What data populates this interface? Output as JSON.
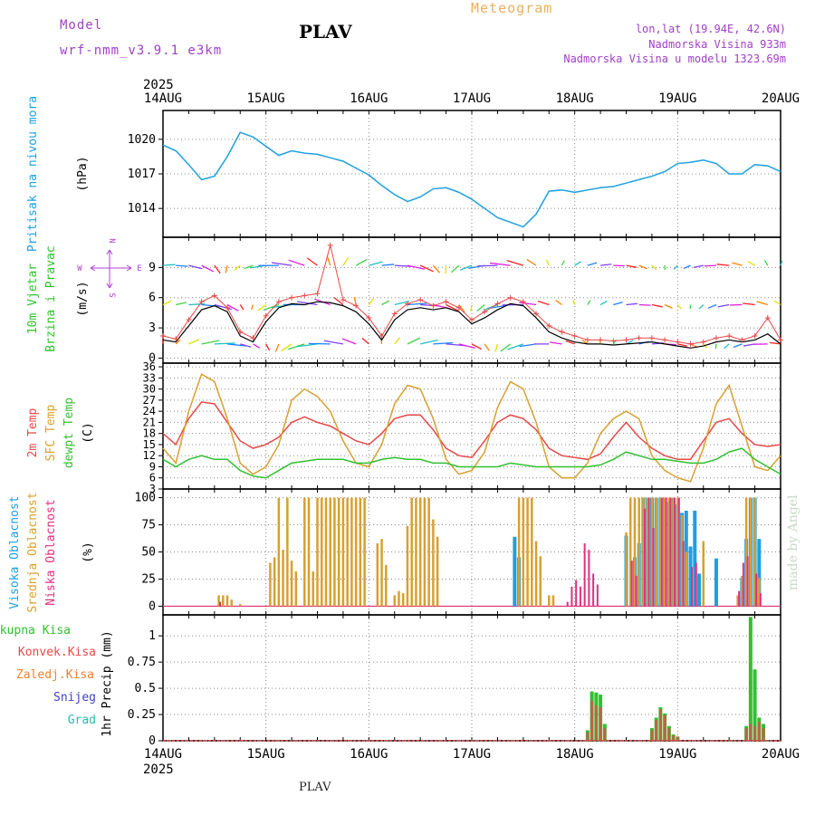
{
  "header": {
    "model_label": "Model",
    "model_version": "wrf-nmm_v3.9.1 e3km",
    "station": "PLAV",
    "title": "Meteogram",
    "lonlat": "lon,lat (19.94E, 42.6N)",
    "altitude": "Nadmorska Visina 933m",
    "model_altitude": "Nadmorska Visina u modelu 1323.69m"
  },
  "footer": {
    "station": "PLAV",
    "credit": "made by Angel"
  },
  "colors": {
    "pressure": "#1ea0e0",
    "temp2m": "#e84848",
    "sfc_temp": "#d8a030",
    "dewpt": "#30c030",
    "wind_label": "#30c030",
    "cloud_high": "#1ea0e0",
    "cloud_mid": "#d8a030",
    "cloud_low": "#e03080",
    "precip_total": "#30c030",
    "precip_conv": "#e84848",
    "precip_frz": "#f08030",
    "precip_snow": "#4040d0",
    "precip_hail": "#20c0b0",
    "wind_speed_line": "#000000",
    "wind_marker": "#e84848"
  },
  "time_axis": {
    "year": "2025",
    "ticks": [
      "14AUG",
      "15AUG",
      "16AUG",
      "17AUG",
      "18AUG",
      "19AUG",
      "20AUG"
    ]
  },
  "compass": {
    "n": "N",
    "s": "S",
    "e": "E",
    "w": "W"
  },
  "chart_data": [
    {
      "id": "pressure",
      "type": "line",
      "ylabel_lines": [
        "Pritisak na nivou mora",
        "(hPa)"
      ],
      "yticks": [
        1014,
        1017,
        1020
      ],
      "ylim": [
        1011.5,
        1022.5
      ],
      "x_hours": [
        0,
        3,
        6,
        9,
        12,
        15,
        18,
        21,
        24,
        27,
        30,
        33,
        36,
        39,
        42,
        45,
        48,
        51,
        54,
        57,
        60,
        63,
        66,
        69,
        72,
        75,
        78,
        81,
        84,
        87,
        90,
        93,
        96,
        99,
        102,
        105,
        108,
        111,
        114,
        117,
        120,
        123,
        126,
        129,
        132,
        135,
        138,
        141,
        144
      ],
      "series": [
        {
          "name": "MSLP",
          "values": [
            1019.5,
            1019.0,
            1017.8,
            1016.5,
            1016.8,
            1018.5,
            1020.6,
            1020.2,
            1019.4,
            1018.6,
            1019.0,
            1018.8,
            1018.7,
            1018.4,
            1018.1,
            1017.5,
            1016.9,
            1016.0,
            1015.2,
            1014.6,
            1015.0,
            1015.7,
            1015.8,
            1015.4,
            1014.8,
            1014.0,
            1013.2,
            1012.8,
            1012.4,
            1013.5,
            1015.5,
            1015.6,
            1015.4,
            1015.6,
            1015.8,
            1015.9,
            1016.2,
            1016.5,
            1016.8,
            1017.2,
            1017.9,
            1018.0,
            1018.2,
            1017.9,
            1017.0,
            1017.0,
            1017.8,
            1017.7,
            1017.2
          ]
        }
      ]
    },
    {
      "id": "wind",
      "type": "line",
      "ylabel_lines": [
        "10m Vjetar",
        "Brzina i Pravac",
        "(m/s)"
      ],
      "yticks": [
        0,
        3,
        6,
        9
      ],
      "ylim": [
        -0.5,
        12
      ],
      "x_hours": [
        0,
        3,
        6,
        9,
        12,
        15,
        18,
        21,
        24,
        27,
        30,
        33,
        36,
        39,
        42,
        45,
        48,
        51,
        54,
        57,
        60,
        63,
        66,
        69,
        72,
        75,
        78,
        81,
        84,
        87,
        90,
        93,
        96,
        99,
        102,
        105,
        108,
        111,
        114,
        117,
        120,
        123,
        126,
        129,
        132,
        135,
        138,
        141,
        144
      ],
      "series": [
        {
          "name": "speed",
          "values": [
            1.8,
            1.6,
            3.2,
            4.8,
            5.2,
            4.6,
            2.2,
            1.6,
            3.6,
            5.0,
            5.4,
            5.3,
            5.6,
            5.5,
            5.2,
            4.6,
            3.4,
            1.8,
            3.8,
            4.8,
            5.0,
            4.8,
            5.0,
            4.6,
            3.4,
            4.0,
            4.8,
            5.4,
            5.2,
            4.0,
            2.6,
            2.0,
            1.6,
            1.4,
            1.4,
            1.3,
            1.4,
            1.5,
            1.6,
            1.4,
            1.2,
            1.0,
            1.2,
            1.6,
            1.8,
            1.6,
            1.8,
            2.4,
            1.4
          ]
        },
        {
          "name": "speed_max",
          "values": [
            2.2,
            1.9,
            3.8,
            5.6,
            6.2,
            5.0,
            2.6,
            2.0,
            4.2,
            5.6,
            6.0,
            6.2,
            6.4,
            11.2,
            5.8,
            5.2,
            4.0,
            2.2,
            4.4,
            5.4,
            5.8,
            5.2,
            5.6,
            5.0,
            3.8,
            4.6,
            5.4,
            6.0,
            5.6,
            4.4,
            3.2,
            2.6,
            2.2,
            1.8,
            1.8,
            1.7,
            1.8,
            2.0,
            2.0,
            1.8,
            1.6,
            1.4,
            1.6,
            2.0,
            2.2,
            1.8,
            2.2,
            4.0,
            1.8
          ]
        }
      ]
    },
    {
      "id": "temperature",
      "type": "line",
      "ylabel_lines": [
        "2m Temp",
        "SFC Temp",
        "dewpt Temp",
        "(C)"
      ],
      "yticks": [
        3,
        6,
        9,
        12,
        15,
        18,
        21,
        24,
        27,
        30,
        33,
        36
      ],
      "ylim": [
        3,
        37
      ],
      "x_hours": [
        0,
        3,
        6,
        9,
        12,
        15,
        18,
        21,
        24,
        27,
        30,
        33,
        36,
        39,
        42,
        45,
        48,
        51,
        54,
        57,
        60,
        63,
        66,
        69,
        72,
        75,
        78,
        81,
        84,
        87,
        90,
        93,
        96,
        99,
        102,
        105,
        108,
        111,
        114,
        117,
        120,
        123,
        126,
        129,
        132,
        135,
        138,
        141,
        144
      ],
      "series": [
        {
          "name": "2m Temp",
          "values": [
            18,
            15,
            22,
            26.5,
            26,
            21,
            16,
            14,
            15,
            17,
            21,
            22.5,
            21,
            20,
            18,
            16,
            15,
            18,
            22,
            23,
            23,
            19,
            14,
            12,
            11.5,
            16,
            21,
            23,
            22,
            19,
            14,
            12,
            11.5,
            11,
            12.5,
            17,
            21,
            17,
            14,
            12,
            11,
            11,
            16,
            21,
            22,
            18,
            15,
            14.5,
            15
          ]
        },
        {
          "name": "SFC Temp",
          "values": [
            14,
            10,
            24,
            34,
            32,
            22,
            10,
            7,
            9,
            15,
            27,
            30,
            28,
            24,
            16,
            10,
            9,
            15,
            26,
            31,
            30,
            22,
            11,
            7,
            8,
            13,
            25,
            32,
            30,
            21,
            9,
            6,
            6,
            10,
            18,
            22,
            24,
            22,
            12,
            8,
            6,
            5,
            14,
            26,
            31,
            20,
            9,
            8,
            12
          ]
        },
        {
          "name": "dewpt Temp",
          "values": [
            11,
            9,
            11,
            12,
            11,
            11,
            8,
            6.5,
            6,
            8,
            10,
            10.5,
            11,
            11,
            11,
            10,
            10,
            11,
            11.5,
            11,
            11,
            10,
            10,
            9,
            9,
            9,
            9,
            10,
            9.5,
            9,
            9,
            9,
            9,
            9,
            9.5,
            11,
            13,
            12,
            11,
            11,
            10.5,
            10,
            10,
            11,
            13,
            14,
            11,
            9,
            7
          ]
        }
      ]
    },
    {
      "id": "clouds",
      "type": "bar",
      "ylabel_lines": [
        "Visoka Oblacnost",
        "Srednja Oblacnost",
        "Niska Oblacnost",
        "(%)"
      ],
      "yticks": [
        0,
        25,
        50,
        75,
        100
      ],
      "ylim": [
        -8,
        108
      ],
      "series": [
        {
          "name": "Visoka",
          "x_hours": [
            82,
            83,
            108,
            110,
            111,
            112,
            113,
            114,
            115,
            116,
            117,
            118,
            119,
            120,
            121,
            122,
            123,
            124,
            125,
            129,
            135,
            136,
            137,
            138,
            139
          ],
          "values": [
            64,
            45,
            65,
            45,
            58,
            100,
            100,
            100,
            100,
            100,
            100,
            96,
            100,
            94,
            86,
            88,
            55,
            88,
            30,
            44,
            26,
            62,
            100,
            100,
            62
          ]
        },
        {
          "name": "Srednja",
          "x_hours": [
            13,
            14,
            15,
            16,
            18,
            25,
            26,
            27,
            28,
            29,
            30,
            31,
            33,
            34,
            35,
            36,
            37,
            38,
            39,
            40,
            41,
            42,
            43,
            44,
            45,
            46,
            47,
            50,
            51,
            52,
            54,
            55,
            56,
            57,
            58,
            59,
            60,
            61,
            62,
            63,
            64,
            83,
            84,
            85,
            86,
            87,
            88,
            90,
            91,
            108,
            109,
            110,
            111,
            112,
            113,
            114,
            115,
            116,
            117,
            118,
            119,
            120,
            121,
            122,
            126,
            134,
            135,
            136,
            137,
            138,
            139
          ],
          "values": [
            10,
            10,
            10,
            6,
            2,
            40,
            45,
            100,
            52,
            100,
            42,
            32,
            100,
            100,
            32,
            100,
            100,
            100,
            100,
            100,
            100,
            100,
            100,
            100,
            100,
            100,
            100,
            58,
            62,
            38,
            10,
            14,
            12,
            74,
            100,
            100,
            100,
            100,
            100,
            80,
            64,
            100,
            100,
            100,
            100,
            60,
            46,
            10,
            10,
            68,
            100,
            100,
            100,
            100,
            100,
            100,
            100,
            100,
            100,
            100,
            100,
            100,
            84,
            50,
            60,
            10,
            28,
            100,
            100,
            100,
            26
          ]
        },
        {
          "name": "Niska",
          "x_hours": [
            13,
            94,
            95,
            96,
            97,
            98,
            99,
            100,
            101,
            109,
            110,
            112,
            113,
            114,
            116,
            117,
            118,
            119,
            120,
            121,
            123,
            124,
            134,
            135,
            136,
            138,
            139
          ],
          "values": [
            4,
            4,
            18,
            24,
            18,
            58,
            52,
            30,
            20,
            42,
            28,
            90,
            100,
            72,
            100,
            100,
            100,
            100,
            100,
            60,
            36,
            40,
            14,
            40,
            46,
            30,
            12
          ]
        }
      ]
    },
    {
      "id": "precip",
      "type": "bar",
      "ylabel_lines": [
        "1hr Precip (mm)"
      ],
      "legend": [
        "Ukupna Kisa",
        "Konvek.Kisa",
        "Zaledj.Kisa",
        "Snijeg",
        "Grad"
      ],
      "yticks": [
        0,
        0.25,
        0.5,
        0.75,
        1
      ],
      "yticklabels": [
        "0",
        "0.25",
        "0.5",
        "0.75",
        "1"
      ],
      "ylim": [
        0,
        1.2
      ],
      "series": [
        {
          "name": "Ukupna Kisa",
          "x_hours": [
            99,
            100,
            101,
            102,
            103,
            114,
            115,
            116,
            117,
            118,
            119,
            120,
            136,
            137,
            138,
            139,
            140
          ],
          "values": [
            0.1,
            0.47,
            0.46,
            0.44,
            0.16,
            0.12,
            0.22,
            0.32,
            0.26,
            0.14,
            0.06,
            0.04,
            0.14,
            1.18,
            0.68,
            0.22,
            0.16
          ]
        },
        {
          "name": "Konvek.Kisa",
          "x_hours": [
            99,
            100,
            101,
            102,
            103,
            114,
            115,
            116,
            117,
            118,
            119,
            120,
            136,
            137,
            138,
            139,
            140
          ],
          "values": [
            0.08,
            0.38,
            0.34,
            0.32,
            0.12,
            0.1,
            0.2,
            0.3,
            0.24,
            0.12,
            0.05,
            0.04,
            0.12,
            0.16,
            0.14,
            0.18,
            0.12
          ]
        }
      ]
    }
  ]
}
